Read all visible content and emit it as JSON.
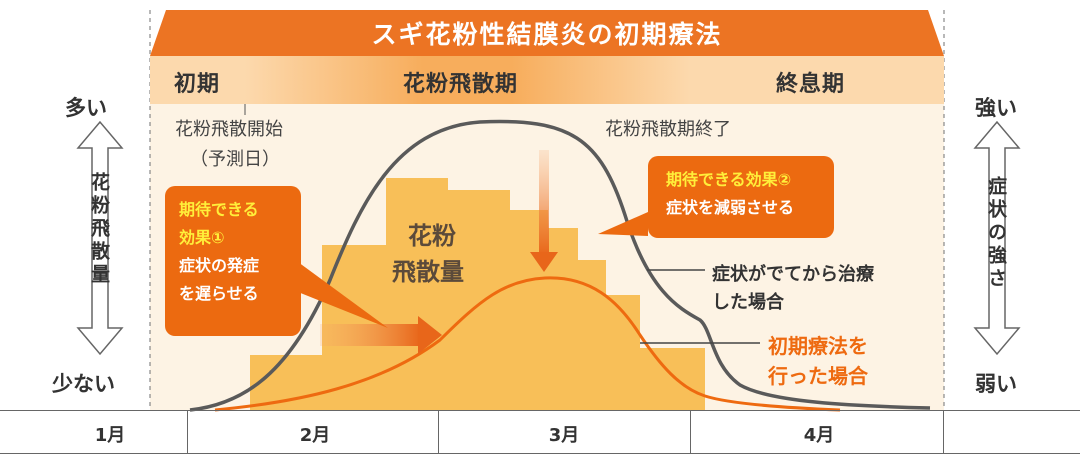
{
  "title": "スギ花粉性結膜炎の初期療法",
  "phases": {
    "early": "初期",
    "main": "花粉飛散期",
    "end": "終息期"
  },
  "markers": {
    "start_line1": "花粉飛散開始",
    "start_line2": "（予測日）",
    "end_label": "花粉飛散期終了"
  },
  "left_axis": {
    "top": "多い",
    "label": "花粉飛散量",
    "bottom": "少ない"
  },
  "right_axis": {
    "top": "強い",
    "label": "症状の強さ",
    "bottom": "弱い"
  },
  "pollen_label": {
    "line1": "花粉",
    "line2": "飛散量"
  },
  "callout1": {
    "title_line1": "期待できる",
    "title_line2": "効果①",
    "body_line1": "症状の発症",
    "body_line2": "を遅らせる"
  },
  "callout2": {
    "title": "期待できる効果②",
    "body": "症状を減弱させる"
  },
  "legend": {
    "untreated_line1": "症状がでてから治療",
    "untreated_line2": "した場合",
    "treated_line1": "初期療法を",
    "treated_line2": "行った場合"
  },
  "months": [
    "1月",
    "2月",
    "3月",
    "4月"
  ],
  "colors": {
    "orange": "#ec7423",
    "pollen": "#f8bf58",
    "untreated_curve": "#5a5a5a",
    "treated_curve": "#ee6a10",
    "callout_title": "#ffef3a"
  }
}
